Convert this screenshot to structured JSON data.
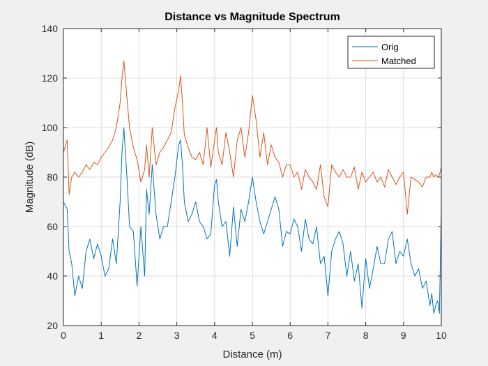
{
  "chart_data": {
    "type": "line",
    "title": "Distance vs Magnitude Spectrum",
    "xlabel": "Distance (m)",
    "ylabel": "Magnitude (dB)",
    "xlim": [
      0,
      10
    ],
    "ylim": [
      20,
      140
    ],
    "xticks": [
      "0",
      "1",
      "2",
      "3",
      "4",
      "5",
      "6",
      "7",
      "8",
      "9",
      "10"
    ],
    "yticks": [
      "20",
      "40",
      "60",
      "80",
      "100",
      "120",
      "140"
    ],
    "grid": true,
    "legend": "top-right",
    "series": [
      {
        "name": "Orig",
        "color": "#0072BD",
        "x": [
          0,
          0.1,
          0.15,
          0.22,
          0.3,
          0.4,
          0.5,
          0.6,
          0.7,
          0.8,
          0.9,
          1.0,
          1.1,
          1.2,
          1.3,
          1.4,
          1.5,
          1.55,
          1.6,
          1.68,
          1.75,
          1.85,
          1.95,
          2.05,
          2.15,
          2.2,
          2.27,
          2.35,
          2.45,
          2.55,
          2.65,
          2.75,
          2.85,
          2.95,
          3.05,
          3.1,
          3.15,
          3.2,
          3.3,
          3.4,
          3.5,
          3.6,
          3.7,
          3.8,
          3.9,
          4.0,
          4.05,
          4.1,
          4.2,
          4.3,
          4.4,
          4.5,
          4.6,
          4.7,
          4.8,
          4.9,
          5.0,
          5.1,
          5.2,
          5.3,
          5.4,
          5.5,
          5.6,
          5.7,
          5.8,
          5.9,
          6.0,
          6.1,
          6.2,
          6.3,
          6.4,
          6.5,
          6.6,
          6.7,
          6.8,
          6.9,
          7.0,
          7.1,
          7.2,
          7.3,
          7.4,
          7.5,
          7.6,
          7.7,
          7.8,
          7.9,
          8.0,
          8.1,
          8.2,
          8.3,
          8.4,
          8.5,
          8.6,
          8.7,
          8.8,
          8.9,
          9.0,
          9.1,
          9.2,
          9.3,
          9.4,
          9.5,
          9.6,
          9.7,
          9.75,
          9.8,
          9.85,
          9.9,
          9.95,
          10.0
        ],
        "y": [
          70,
          67,
          50,
          45,
          32,
          40,
          35,
          50,
          55,
          47,
          53,
          48,
          40,
          43,
          55,
          45,
          70,
          90,
          100,
          80,
          60,
          58,
          36,
          60,
          40,
          75,
          65,
          85,
          65,
          55,
          60,
          60,
          70,
          80,
          93,
          95,
          85,
          70,
          62,
          65,
          70,
          62,
          60,
          55,
          57,
          77,
          79,
          70,
          60,
          62,
          48,
          68,
          52,
          67,
          62,
          70,
          80,
          70,
          62,
          57,
          62,
          67,
          72,
          67,
          52,
          58,
          57,
          63,
          60,
          50,
          63,
          55,
          53,
          60,
          45,
          48,
          32,
          50,
          55,
          58,
          53,
          40,
          50,
          38,
          45,
          27,
          47,
          35,
          43,
          52,
          45,
          45,
          55,
          58,
          45,
          50,
          48,
          55,
          45,
          40,
          43,
          35,
          38,
          28,
          33,
          25,
          28,
          30,
          25,
          67
        ]
      },
      {
        "name": "Matched",
        "color": "#D95319",
        "x": [
          0,
          0.1,
          0.15,
          0.22,
          0.3,
          0.4,
          0.5,
          0.6,
          0.7,
          0.8,
          0.9,
          1.0,
          1.1,
          1.2,
          1.3,
          1.4,
          1.5,
          1.55,
          1.6,
          1.68,
          1.75,
          1.85,
          1.95,
          2.05,
          2.15,
          2.2,
          2.27,
          2.35,
          2.45,
          2.55,
          2.65,
          2.75,
          2.85,
          2.95,
          3.05,
          3.1,
          3.15,
          3.2,
          3.3,
          3.4,
          3.5,
          3.6,
          3.7,
          3.8,
          3.9,
          4.0,
          4.05,
          4.1,
          4.2,
          4.3,
          4.4,
          4.5,
          4.6,
          4.7,
          4.8,
          4.9,
          5.0,
          5.1,
          5.2,
          5.3,
          5.4,
          5.5,
          5.6,
          5.7,
          5.8,
          5.9,
          6.0,
          6.1,
          6.2,
          6.3,
          6.4,
          6.5,
          6.6,
          6.7,
          6.8,
          6.9,
          7.0,
          7.1,
          7.2,
          7.3,
          7.4,
          7.5,
          7.6,
          7.7,
          7.8,
          7.9,
          8.0,
          8.1,
          8.2,
          8.3,
          8.4,
          8.5,
          8.6,
          8.7,
          8.8,
          8.9,
          9.0,
          9.1,
          9.2,
          9.3,
          9.4,
          9.5,
          9.6,
          9.7,
          9.75,
          9.8,
          9.85,
          9.9,
          9.95,
          10.0
        ],
        "y": [
          90,
          95,
          73,
          80,
          82,
          80,
          82,
          85,
          83,
          86,
          85,
          88,
          90,
          92,
          95,
          100,
          110,
          120,
          127,
          112,
          100,
          92,
          87,
          78,
          83,
          93,
          80,
          100,
          85,
          90,
          92,
          95,
          98,
          108,
          115,
          121,
          110,
          97,
          92,
          88,
          87,
          90,
          85,
          100,
          84,
          95,
          100,
          90,
          85,
          98,
          90,
          80,
          95,
          100,
          88,
          98,
          113,
          103,
          88,
          98,
          85,
          93,
          88,
          86,
          80,
          85,
          85,
          80,
          82,
          75,
          83,
          80,
          78,
          75,
          85,
          72,
          68,
          85,
          82,
          80,
          83,
          80,
          80,
          84,
          75,
          82,
          78,
          80,
          82,
          78,
          80,
          76,
          83,
          80,
          77,
          80,
          82,
          65,
          80,
          79,
          78,
          76,
          80,
          80,
          82,
          80,
          81,
          80,
          81,
          84
        ]
      }
    ]
  }
}
